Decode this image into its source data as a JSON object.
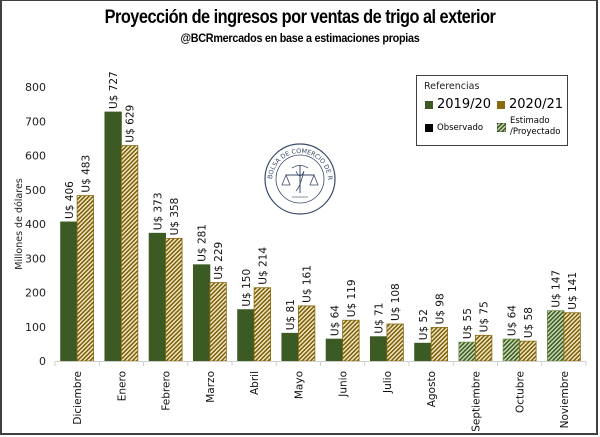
{
  "chart_data": {
    "type": "bar",
    "title": "Proyección de ingresos por ventas de trigo al exterior",
    "subtitle": "@BCRmercados en base a estimaciones propias",
    "ylabel": "Millones de dólares",
    "xlabel": "",
    "ylim": [
      0,
      800
    ],
    "yticks": [
      0,
      100,
      200,
      300,
      400,
      500,
      600,
      700,
      800
    ],
    "grid": false,
    "categories": [
      "Diciembre",
      "Enero",
      "Febrero",
      "Marzo",
      "Abril",
      "Mayo",
      "Junio",
      "Julio",
      "Agosto",
      "Septiembre",
      "Octubre",
      "Noviembre"
    ],
    "series": [
      {
        "name": "2019/20",
        "color": "#3c5a23",
        "values": [
          406,
          727,
          373,
          281,
          150,
          81,
          64,
          71,
          52,
          55,
          64,
          147
        ],
        "labels": [
          "U$ 406",
          "U$ 727",
          "U$ 373",
          "U$ 281",
          "U$ 150",
          "U$ 81",
          "U$ 64",
          "U$ 71",
          "U$ 52",
          "U$ 55",
          "U$ 64",
          "U$ 147"
        ],
        "estimated": [
          false,
          false,
          false,
          false,
          false,
          false,
          false,
          false,
          false,
          true,
          true,
          true
        ]
      },
      {
        "name": "2020/21",
        "color": "#8a6a10",
        "values": [
          483,
          629,
          358,
          229,
          214,
          161,
          119,
          108,
          98,
          75,
          58,
          141
        ],
        "labels": [
          "U$ 483",
          "U$ 629",
          "U$ 358",
          "U$ 229",
          "U$ 214",
          "U$ 161",
          "U$ 119",
          "U$ 108",
          "U$ 98",
          "U$ 75",
          "U$ 58",
          "U$ 141"
        ],
        "estimated": [
          true,
          true,
          true,
          true,
          true,
          true,
          true,
          true,
          true,
          true,
          true,
          true
        ]
      }
    ],
    "legend": {
      "position": "top-right",
      "heading": "Referencias",
      "observed_label": "Observado",
      "estimated_label_line1": "Estimado",
      "estimated_label_line2": "/Proyectado"
    }
  },
  "watermark": {
    "text": "BOLSA DE COMERCIO DE ROSARIO"
  }
}
